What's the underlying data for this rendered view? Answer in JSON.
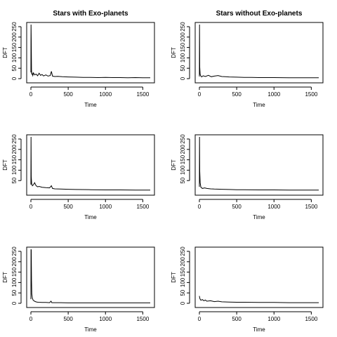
{
  "chart_data": [
    {
      "type": "line",
      "title": "Stars with Exo-planets",
      "xlabel": "Time",
      "ylabel": "DFT",
      "xlim": [
        0,
        1600
      ],
      "ylim": [
        0,
        250
      ],
      "xticks": [
        0,
        500,
        1000,
        1500
      ],
      "yticks": [
        0,
        50,
        100,
        150,
        200,
        250
      ],
      "series": [
        {
          "x": [
            0,
            2,
            5,
            8,
            12,
            18,
            25,
            35,
            50,
            70,
            90,
            110,
            130,
            150,
            170,
            200,
            230,
            260,
            275,
            290,
            320,
            360,
            420,
            500,
            600,
            700,
            800,
            900,
            1000,
            1100,
            1200,
            1300,
            1400,
            1500,
            1600
          ],
          "values": [
            30,
            260,
            180,
            40,
            20,
            25,
            15,
            28,
            18,
            22,
            14,
            26,
            16,
            20,
            13,
            18,
            12,
            15,
            35,
            12,
            10,
            11,
            9,
            8,
            7,
            6,
            6,
            5,
            6,
            5,
            5,
            4,
            5,
            4,
            4
          ]
        }
      ]
    },
    {
      "type": "line",
      "title": "Stars without Exo-planets",
      "xlabel": "Time",
      "ylabel": "DFT",
      "xlim": [
        0,
        1600
      ],
      "ylim": [
        0,
        250
      ],
      "xticks": [
        0,
        500,
        1000,
        1500
      ],
      "yticks": [
        0,
        50,
        100,
        150,
        200,
        250
      ],
      "series": [
        {
          "x": [
            0,
            2,
            5,
            10,
            20,
            30,
            50,
            80,
            120,
            160,
            200,
            250,
            300,
            350,
            400,
            500,
            600,
            700,
            800,
            900,
            1000,
            1200,
            1400,
            1600
          ],
          "values": [
            10,
            260,
            55,
            20,
            12,
            8,
            14,
            10,
            16,
            9,
            12,
            15,
            10,
            9,
            8,
            7,
            6,
            6,
            5,
            5,
            5,
            4,
            4,
            4
          ]
        }
      ]
    },
    {
      "type": "line",
      "title": "",
      "xlabel": "Time",
      "ylabel": "DFT",
      "xlim": [
        0,
        1600
      ],
      "ylim": [
        0,
        250
      ],
      "xticks": [
        0,
        500,
        1000,
        1500
      ],
      "yticks": [
        50,
        100,
        150,
        200,
        250
      ],
      "series": [
        {
          "x": [
            0,
            2,
            5,
            10,
            20,
            35,
            50,
            70,
            90,
            110,
            150,
            200,
            250,
            275,
            290,
            320,
            400,
            500,
            600,
            800,
            1000,
            1200,
            1400,
            1600
          ],
          "values": [
            30,
            260,
            70,
            35,
            25,
            30,
            40,
            25,
            20,
            22,
            18,
            16,
            15,
            25,
            12,
            10,
            9,
            8,
            7,
            6,
            5,
            5,
            4,
            4
          ]
        }
      ]
    },
    {
      "type": "line",
      "title": "",
      "xlabel": "Time",
      "ylabel": "DFT",
      "xlim": [
        0,
        1600
      ],
      "ylim": [
        0,
        250
      ],
      "xticks": [
        0,
        500,
        1000,
        1500
      ],
      "yticks": [
        50,
        100,
        150,
        200,
        250
      ],
      "series": [
        {
          "x": [
            0,
            2,
            5,
            10,
            20,
            40,
            70,
            100,
            150,
            200,
            300,
            400,
            500,
            600,
            800,
            1000,
            1200,
            1400,
            1600
          ],
          "values": [
            20,
            260,
            95,
            40,
            18,
            12,
            15,
            12,
            10,
            9,
            8,
            7,
            6,
            6,
            5,
            5,
            4,
            4,
            4
          ]
        }
      ]
    },
    {
      "type": "line",
      "title": "",
      "xlabel": "Time",
      "ylabel": "DFT",
      "xlim": [
        0,
        1600
      ],
      "ylim": [
        0,
        250
      ],
      "xticks": [
        0,
        500,
        1000,
        1500
      ],
      "yticks": [
        0,
        50,
        100,
        150,
        200,
        250
      ],
      "series": [
        {
          "x": [
            0,
            2,
            5,
            8,
            12,
            20,
            30,
            40,
            60,
            80,
            100,
            150,
            200,
            250,
            270,
            280,
            300,
            400,
            500,
            700,
            900,
            1100,
            1300,
            1600
          ],
          "values": [
            20,
            260,
            255,
            110,
            45,
            25,
            15,
            12,
            8,
            6,
            5,
            4,
            4,
            3,
            10,
            3,
            3,
            3,
            2,
            2,
            2,
            2,
            2,
            2
          ]
        }
      ]
    },
    {
      "type": "line",
      "title": "",
      "xlabel": "Time",
      "ylabel": "DFT",
      "xlim": [
        0,
        1600
      ],
      "ylim": [
        0,
        250
      ],
      "xticks": [
        0,
        500,
        1000,
        1500
      ],
      "yticks": [
        0,
        50,
        100,
        150,
        200,
        250
      ],
      "series": [
        {
          "x": [
            0,
            5,
            10,
            20,
            40,
            60,
            80,
            100,
            150,
            200,
            250,
            300,
            400,
            500,
            600,
            800,
            1000,
            1200,
            1400,
            1600
          ],
          "values": [
            35,
            25,
            20,
            15,
            18,
            12,
            16,
            10,
            12,
            8,
            10,
            7,
            6,
            5,
            5,
            4,
            4,
            3,
            3,
            3
          ]
        }
      ]
    }
  ]
}
